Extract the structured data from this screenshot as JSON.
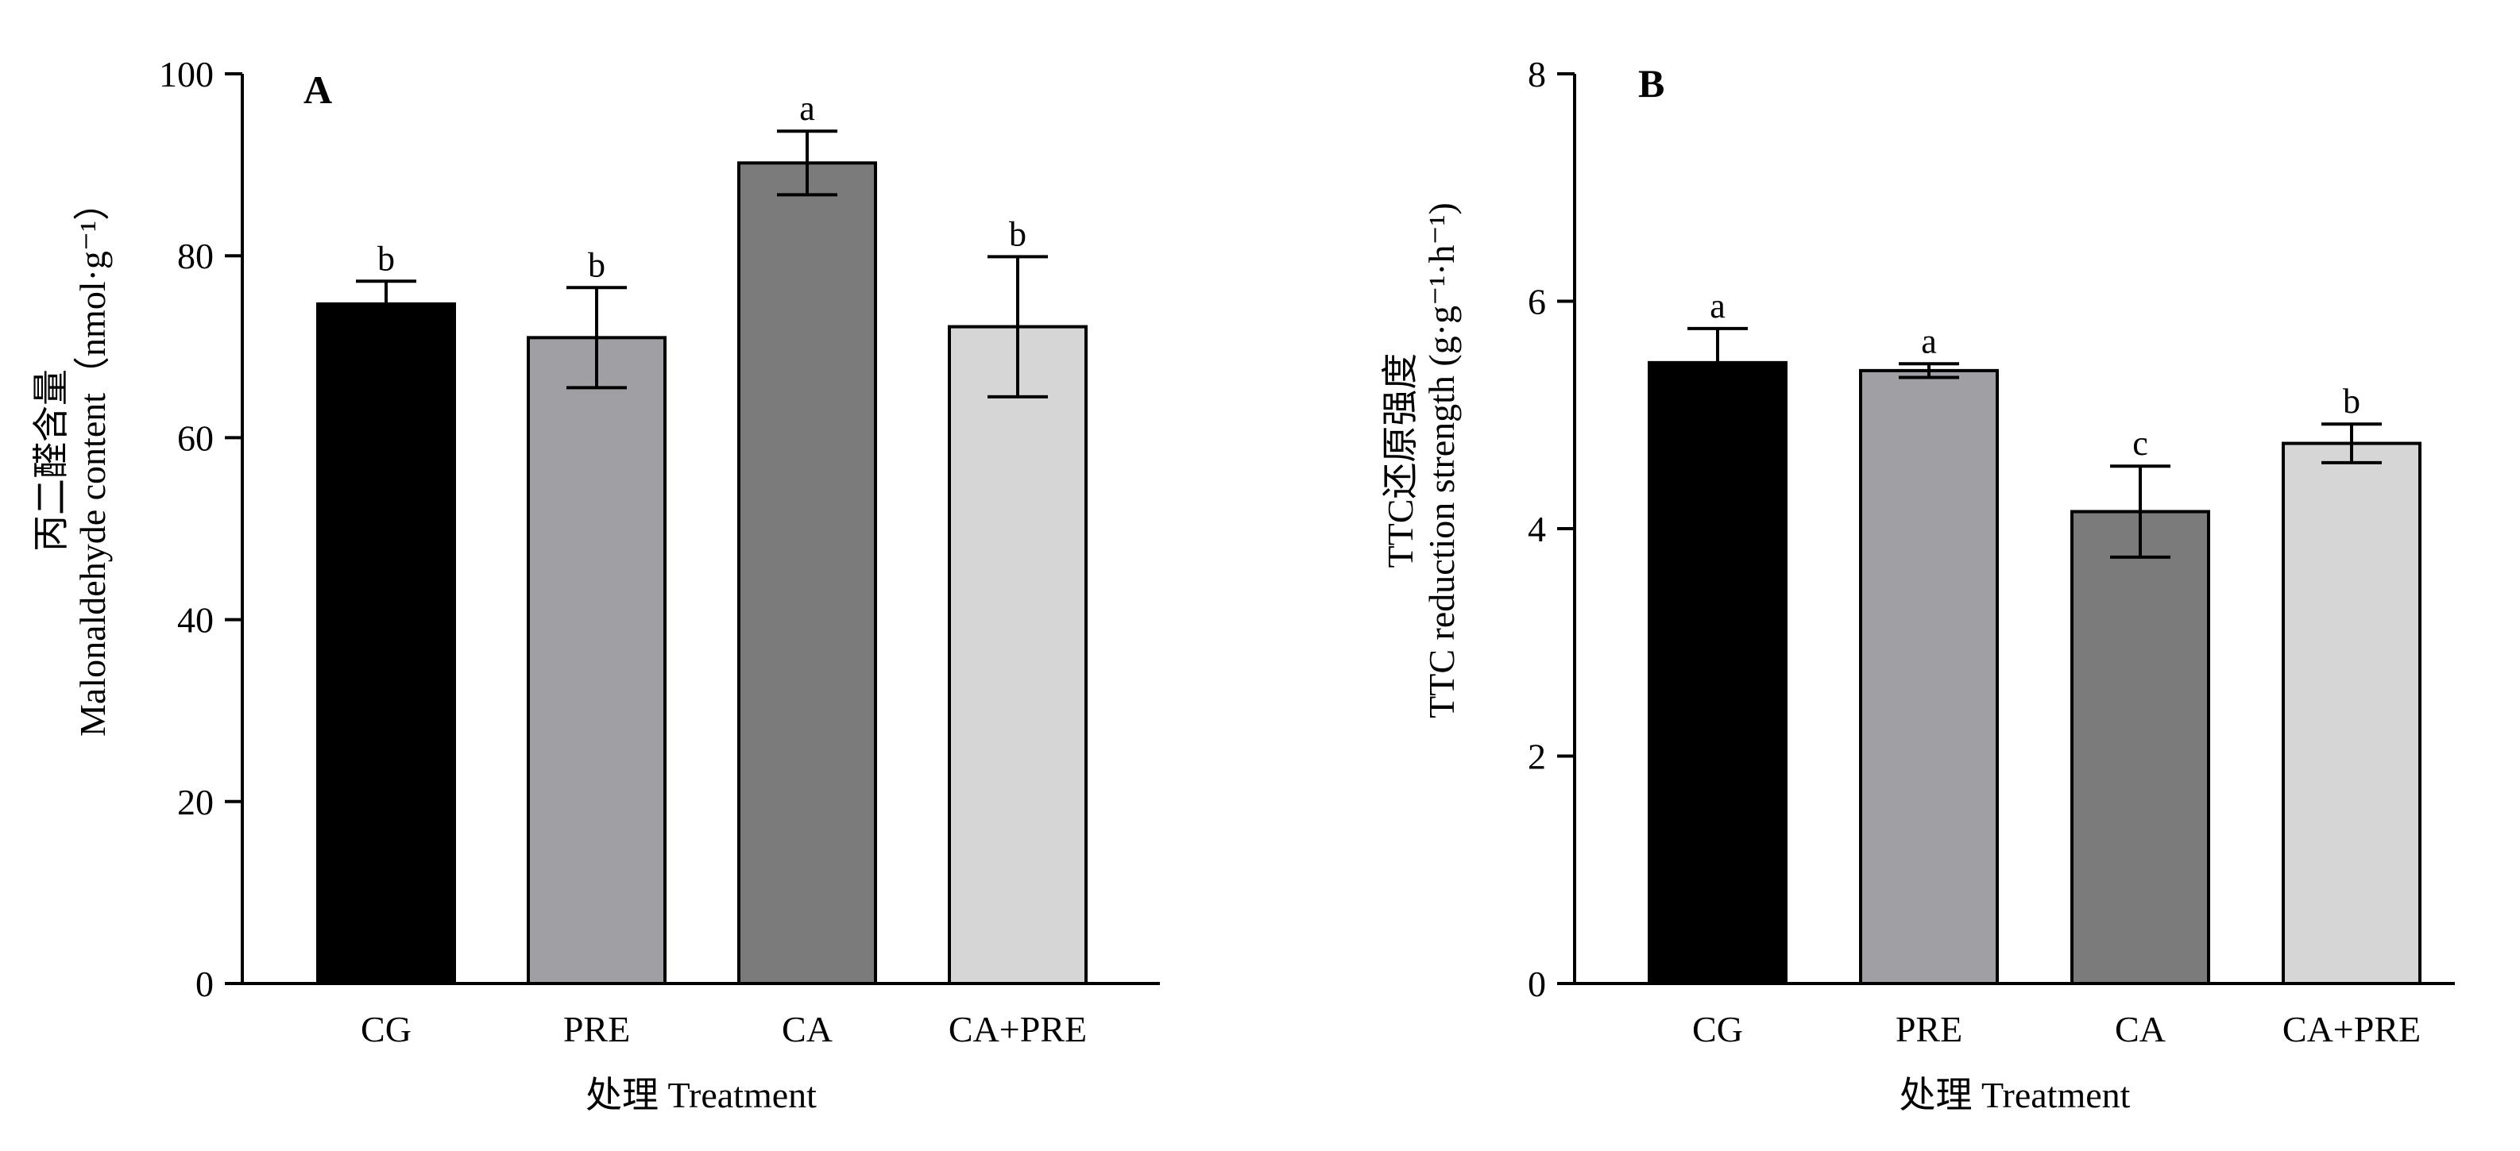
{
  "chart_data": [
    {
      "type": "bar",
      "panel_label": "A",
      "categories": [
        "CG",
        "PRE",
        "CA",
        "CA+PRE"
      ],
      "values": [
        74.7,
        71.0,
        90.2,
        72.2
      ],
      "errors": [
        2.5,
        5.5,
        3.5,
        7.7
      ],
      "significance": [
        "b",
        "b",
        "a",
        "b"
      ],
      "colors": [
        "#000000",
        "#a0a0a4",
        "#7b7b7b",
        "#d6d6d6"
      ],
      "xlabel": "处理 Treatment",
      "ylabel_cn": "丙二醛含量",
      "ylabel_en": "Malonaldehyde content（nmol·g⁻¹）",
      "ylim": [
        0,
        100
      ],
      "yticks": [
        0,
        20,
        40,
        60,
        80,
        100
      ],
      "grid": false
    },
    {
      "type": "bar",
      "panel_label": "B",
      "categories": [
        "CG",
        "PRE",
        "CA",
        "CA+PRE"
      ],
      "values": [
        5.46,
        5.39,
        4.15,
        4.75
      ],
      "errors": [
        0.3,
        0.06,
        0.4,
        0.17
      ],
      "significance": [
        "a",
        "a",
        "c",
        "b"
      ],
      "colors": [
        "#000000",
        "#a0a0a4",
        "#7b7b7b",
        "#d6d6d6"
      ],
      "xlabel": "处理 Treatment",
      "ylabel_cn": "TTC还原强度",
      "ylabel_en": "TTC reduction strength (g·g⁻¹·h⁻¹)",
      "ylim": [
        0,
        8
      ],
      "yticks": [
        0,
        2,
        4,
        6,
        8
      ],
      "grid": false
    }
  ]
}
